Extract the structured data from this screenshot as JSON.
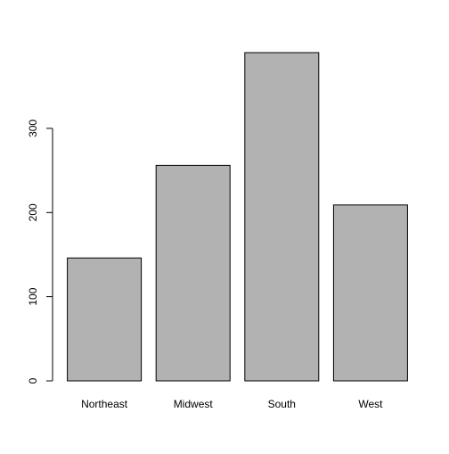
{
  "chart_data": {
    "type": "bar",
    "title": "",
    "xlabel": "",
    "ylabel": "",
    "categories": [
      "Northeast",
      "Midwest",
      "South",
      "West"
    ],
    "values": [
      146,
      256,
      390,
      209
    ],
    "ylim": [
      0,
      390
    ],
    "yticks": [
      0,
      100,
      200,
      300
    ],
    "ytick_labels": [
      "0",
      "100",
      "200",
      "300"
    ],
    "grid": false,
    "legend": "none",
    "colors": {
      "bar_fill": "#b2b2b2",
      "bar_stroke": "#000000",
      "axis": "#000000",
      "background": "#ffffff"
    }
  }
}
